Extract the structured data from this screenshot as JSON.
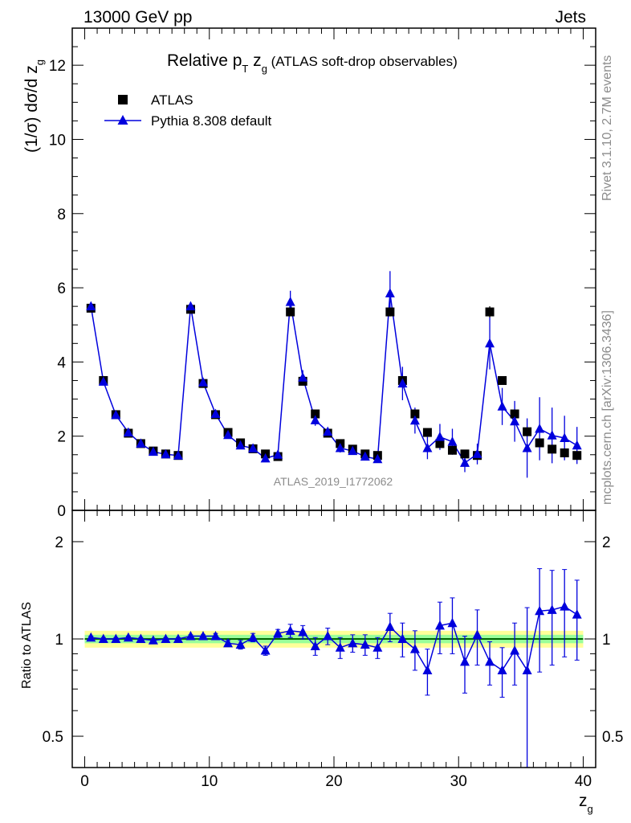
{
  "header": {
    "left": "13000 GeV pp",
    "right": "Jets"
  },
  "title": {
    "main": "Relative p",
    "sub_t": "T",
    "z": " z",
    "sub_g": "g",
    "rest": " (ATLAS soft-drop observables)"
  },
  "side_labels": {
    "rivet": "Rivet 3.1.10,  2.7M events",
    "mcplots": "mcplots.cern.ch [arXiv:1306.3436]"
  },
  "analysis_label": "ATLAS_2019_I1772062",
  "axes": {
    "ylabel_main": "(1/σ) dσ/d z",
    "ylabel_main_sub": "g",
    "ylabel_ratio": "Ratio to ATLAS",
    "xlabel": "z",
    "xlabel_sub": "g"
  },
  "legend": {
    "data_label": "ATLAS",
    "mc_label": "Pythia 8.308 default"
  },
  "colors": {
    "data": "#000000",
    "mc": "#0000dd",
    "band_yellow": "#ffff99",
    "band_green": "#99ff99",
    "ratio_line": "#006600"
  },
  "chart_data": {
    "type": "scatter",
    "x": [
      0.5,
      1.5,
      2.5,
      3.5,
      4.5,
      5.5,
      6.5,
      7.5,
      8.5,
      9.5,
      10.5,
      11.5,
      12.5,
      13.5,
      14.5,
      15.5,
      16.5,
      17.5,
      18.5,
      19.5,
      20.5,
      21.5,
      22.5,
      23.5,
      24.5,
      25.5,
      26.5,
      27.5,
      28.5,
      29.5,
      30.5,
      31.5,
      32.5,
      33.5,
      34.5,
      35.5,
      36.5,
      37.5,
      38.5,
      39.5
    ],
    "series": [
      {
        "name": "ATLAS",
        "values": [
          5.45,
          3.5,
          2.58,
          2.08,
          1.8,
          1.6,
          1.52,
          1.48,
          5.42,
          3.42,
          2.58,
          2.1,
          1.82,
          1.66,
          1.52,
          1.45,
          5.35,
          3.48,
          2.6,
          2.08,
          1.8,
          1.65,
          1.52,
          1.48,
          5.35,
          3.5,
          2.6,
          2.1,
          1.8,
          1.62,
          1.52,
          1.48,
          5.35,
          3.5,
          2.6,
          2.12,
          1.82,
          1.65,
          1.55,
          1.48
        ],
        "errors": [
          0.06,
          0.05,
          0.04,
          0.03,
          0.03,
          0.03,
          0.03,
          0.03,
          0.06,
          0.05,
          0.04,
          0.03,
          0.03,
          0.03,
          0.03,
          0.03,
          0.1,
          0.06,
          0.05,
          0.04,
          0.04,
          0.04,
          0.04,
          0.04,
          0.12,
          0.07,
          0.06,
          0.05,
          0.05,
          0.05,
          0.05,
          0.05,
          0.15,
          0.1,
          0.08,
          0.08,
          0.08,
          0.08,
          0.08,
          0.08
        ]
      },
      {
        "name": "Pythia 8.308 default",
        "values": [
          5.5,
          3.47,
          2.57,
          2.1,
          1.8,
          1.58,
          1.51,
          1.48,
          5.5,
          3.45,
          2.6,
          2.03,
          1.75,
          1.67,
          1.4,
          1.5,
          5.62,
          3.58,
          2.43,
          2.12,
          1.68,
          1.6,
          1.45,
          1.38,
          5.85,
          3.42,
          2.42,
          1.68,
          1.98,
          1.85,
          1.28,
          1.52,
          4.5,
          2.8,
          2.4,
          1.68,
          2.2,
          2.02,
          1.95,
          1.75
        ],
        "errors": [
          0.05,
          0.04,
          0.04,
          0.03,
          0.03,
          0.03,
          0.03,
          0.03,
          0.06,
          0.05,
          0.05,
          0.05,
          0.05,
          0.05,
          0.05,
          0.05,
          0.3,
          0.2,
          0.15,
          0.1,
          0.12,
          0.1,
          0.1,
          0.1,
          0.6,
          0.45,
          0.35,
          0.3,
          0.35,
          0.35,
          0.25,
          0.28,
          0.7,
          0.5,
          0.55,
          0.8,
          0.85,
          0.75,
          0.6,
          0.5
        ]
      }
    ],
    "ratio": {
      "values": [
        1.01,
        1.0,
        1.0,
        1.01,
        1.0,
        0.99,
        1.0,
        1.0,
        1.02,
        1.02,
        1.02,
        0.97,
        0.96,
        1.01,
        0.92,
        1.04,
        1.06,
        1.05,
        0.95,
        1.02,
        0.94,
        0.97,
        0.96,
        0.94,
        1.09,
        1.0,
        0.93,
        0.8,
        1.1,
        1.12,
        0.85,
        1.03,
        0.85,
        0.8,
        0.92,
        0.8,
        1.22,
        1.23,
        1.26,
        1.19
      ],
      "errors": [
        0.01,
        0.01,
        0.01,
        0.01,
        0.01,
        0.01,
        0.01,
        0.01,
        0.01,
        0.01,
        0.02,
        0.02,
        0.03,
        0.03,
        0.03,
        0.03,
        0.05,
        0.05,
        0.06,
        0.06,
        0.07,
        0.06,
        0.07,
        0.07,
        0.11,
        0.12,
        0.13,
        0.13,
        0.2,
        0.22,
        0.17,
        0.2,
        0.13,
        0.14,
        0.2,
        0.45,
        0.43,
        0.4,
        0.38,
        0.33
      ],
      "band_yellow_halfwidth": 0.06,
      "band_green_halfwidth": 0.03
    },
    "xlim": [
      -1,
      41
    ],
    "ylim_main": [
      0,
      13
    ],
    "ylim_ratio": [
      0.4,
      2.5
    ],
    "log_y_ratio": true,
    "x_ticks": [
      0,
      10,
      20,
      30,
      40
    ],
    "y_ticks_main": [
      0,
      2,
      4,
      6,
      8,
      10,
      12
    ],
    "y_ticks_ratio": [
      0.5,
      1,
      2
    ],
    "y_tick_labels_ratio": [
      "0.5",
      "1",
      "2"
    ],
    "legend_position": "top-left"
  }
}
